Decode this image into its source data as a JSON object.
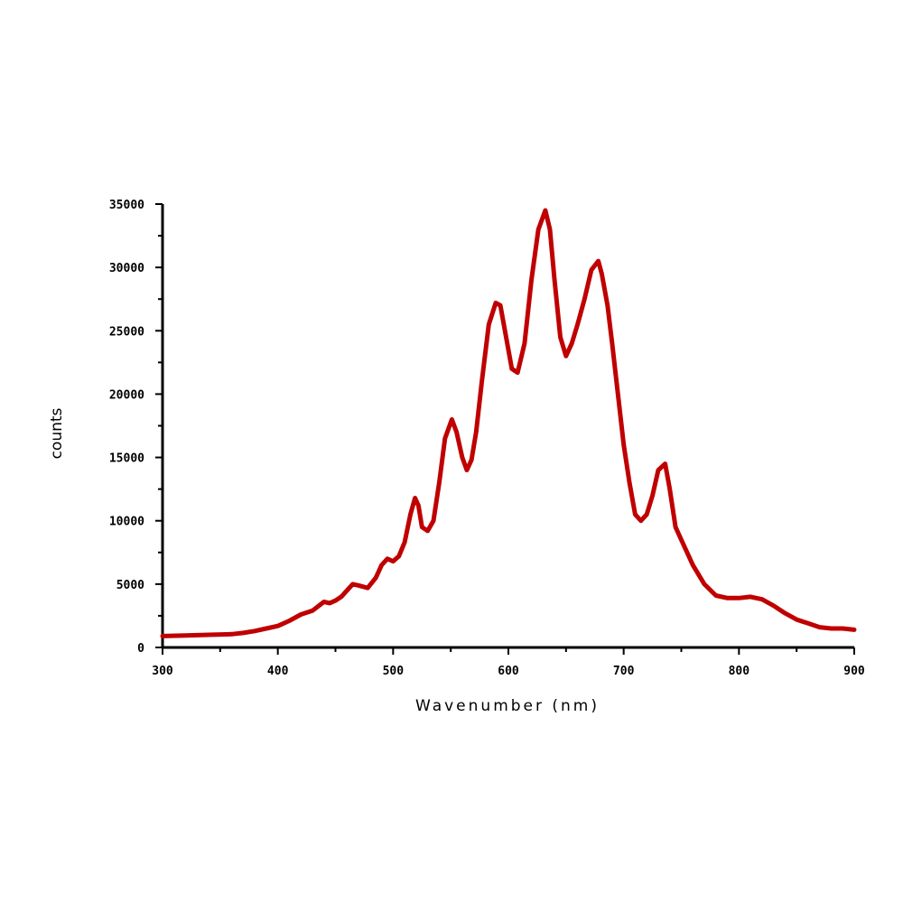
{
  "chart_data": {
    "type": "line",
    "title": "",
    "xlabel": "Wavenumber (nm)",
    "ylabel": "counts",
    "xlim": [
      300,
      900
    ],
    "ylim": [
      0,
      35000
    ],
    "x_ticks": [
      300,
      400,
      500,
      600,
      700,
      800,
      900
    ],
    "x_tick_labels": [
      "300",
      "400",
      "500",
      "600",
      "700",
      "800",
      "900"
    ],
    "y_ticks": [
      0,
      5000,
      10000,
      15000,
      20000,
      25000,
      30000,
      35000
    ],
    "y_tick_labels": [
      "0",
      "5000",
      "10000",
      "15000",
      "20000",
      "25000",
      "30000",
      "35000"
    ],
    "grid": false,
    "legend": "none",
    "line_color": "#c00000",
    "series": [
      {
        "x": [
          300,
          320,
          340,
          360,
          370,
          380,
          390,
          400,
          410,
          420,
          430,
          440,
          445,
          450,
          455,
          465,
          470,
          478,
          485,
          490,
          495,
          500,
          505,
          510,
          515,
          519,
          522,
          525,
          530,
          535,
          540,
          545,
          551,
          555,
          560,
          564,
          568,
          572,
          577,
          583,
          589,
          593,
          597,
          603,
          608,
          614,
          620,
          626,
          632,
          636,
          640,
          645,
          650,
          655,
          660,
          666,
          672,
          678,
          681,
          686,
          690,
          695,
          700,
          705,
          710,
          715,
          720,
          725,
          730,
          736,
          740,
          745,
          750,
          760,
          770,
          780,
          790,
          800,
          810,
          820,
          830,
          840,
          850,
          860,
          870,
          880,
          890,
          900
        ],
        "y": [
          900,
          950,
          1000,
          1050,
          1150,
          1300,
          1500,
          1700,
          2100,
          2600,
          2900,
          3600,
          3500,
          3700,
          4000,
          5000,
          4900,
          4700,
          5500,
          6500,
          7000,
          6800,
          7200,
          8300,
          10500,
          11800,
          11200,
          9500,
          9200,
          10000,
          13000,
          16500,
          18000,
          17000,
          15000,
          14000,
          14800,
          17000,
          21000,
          25500,
          27200,
          27000,
          25000,
          22000,
          21700,
          24000,
          29000,
          33000,
          34500,
          33000,
          29000,
          24500,
          23000,
          24000,
          25500,
          27500,
          29800,
          30500,
          29500,
          27000,
          24000,
          20000,
          16000,
          13000,
          10500,
          10000,
          10500,
          12000,
          14000,
          14500,
          12500,
          9500,
          8500,
          6500,
          5000,
          4100,
          3900,
          3900,
          4000,
          3800,
          3300,
          2700,
          2200,
          1900,
          1600,
          1500,
          1500,
          1400
        ]
      }
    ]
  }
}
